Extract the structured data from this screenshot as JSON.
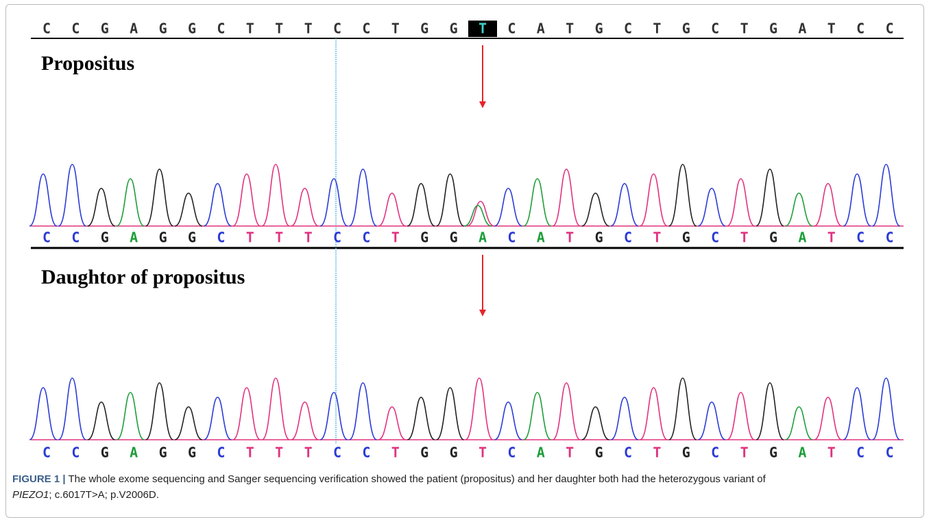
{
  "reference_sequence": [
    "C",
    "C",
    "G",
    "A",
    "G",
    "G",
    "C",
    "T",
    "T",
    "T",
    "C",
    "C",
    "T",
    "G",
    "G",
    "T",
    "C",
    "A",
    "T",
    "G",
    "C",
    "T",
    "G",
    "C",
    "T",
    "G",
    "A",
    "T",
    "C",
    "C"
  ],
  "highlight_index": 15,
  "base_colors": {
    "A": "#1e9e3a",
    "C": "#2b3bd6",
    "G": "#222222",
    "T": "#e0337f"
  },
  "panels": [
    {
      "label": "Propositus",
      "sequence": [
        "C",
        "C",
        "G",
        "A",
        "G",
        "G",
        "C",
        "T",
        "T",
        "T",
        "C",
        "C",
        "T",
        "G",
        "G",
        "A",
        "C",
        "A",
        "T",
        "G",
        "C",
        "T",
        "G",
        "C",
        "T",
        "G",
        "A",
        "T",
        "C",
        "C"
      ]
    },
    {
      "label": "Daughtor of propositus",
      "sequence": [
        "C",
        "C",
        "G",
        "A",
        "G",
        "G",
        "C",
        "T",
        "T",
        "T",
        "C",
        "C",
        "T",
        "G",
        "G",
        "T",
        "C",
        "A",
        "T",
        "G",
        "C",
        "T",
        "G",
        "C",
        "T",
        "G",
        "A",
        "T",
        "C",
        "C"
      ]
    }
  ],
  "caption": {
    "label": "FIGURE 1 |",
    "text": "The whole exome sequencing and Sanger sequencing verification showed the patient (propositus) and her daughter both had the heterozygous variant of",
    "gene": "PIEZO1",
    "rest": "; c.6017T>A; p.V2006D."
  }
}
